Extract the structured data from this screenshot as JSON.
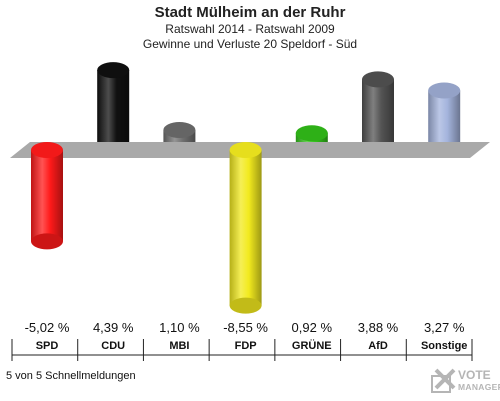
{
  "title": "Stadt Mülheim an der Ruhr",
  "subtitle": "Ratswahl 2014 - Ratswahl 2009",
  "subtitle2": "Gewinne und Verluste 20 Speldorf - Süd",
  "footer": "5 von 5 Schnellmeldungen",
  "logo": {
    "line1": "VOTE",
    "line2": "MANAGER",
    "icon": "ballot-cross-icon"
  },
  "chart_data": {
    "type": "bar",
    "title": "Stadt Mülheim an der Ruhr",
    "subtitle": "Ratswahl 2014 - Ratswahl 2009 / Gewinne und Verluste 20 Speldorf - Süd",
    "categories": [
      "SPD",
      "CDU",
      "MBI",
      "FDP",
      "GRÜNE",
      "AfD",
      "Sonstige"
    ],
    "values": [
      -5.02,
      4.39,
      1.1,
      -8.55,
      0.92,
      3.88,
      3.27
    ],
    "value_labels": [
      "-5,02 %",
      "4,39 %",
      "1,10 %",
      "-8,55 %",
      "0,92 %",
      "3,88 %",
      "3,27 %"
    ],
    "colors": [
      "#ff1a1a",
      "#111111",
      "#707070",
      "#f2ea1e",
      "#33c41a",
      "#545454",
      "#a4b4dd"
    ],
    "ylim": [
      -8.55,
      4.39
    ],
    "grid": false,
    "legend": "none"
  }
}
